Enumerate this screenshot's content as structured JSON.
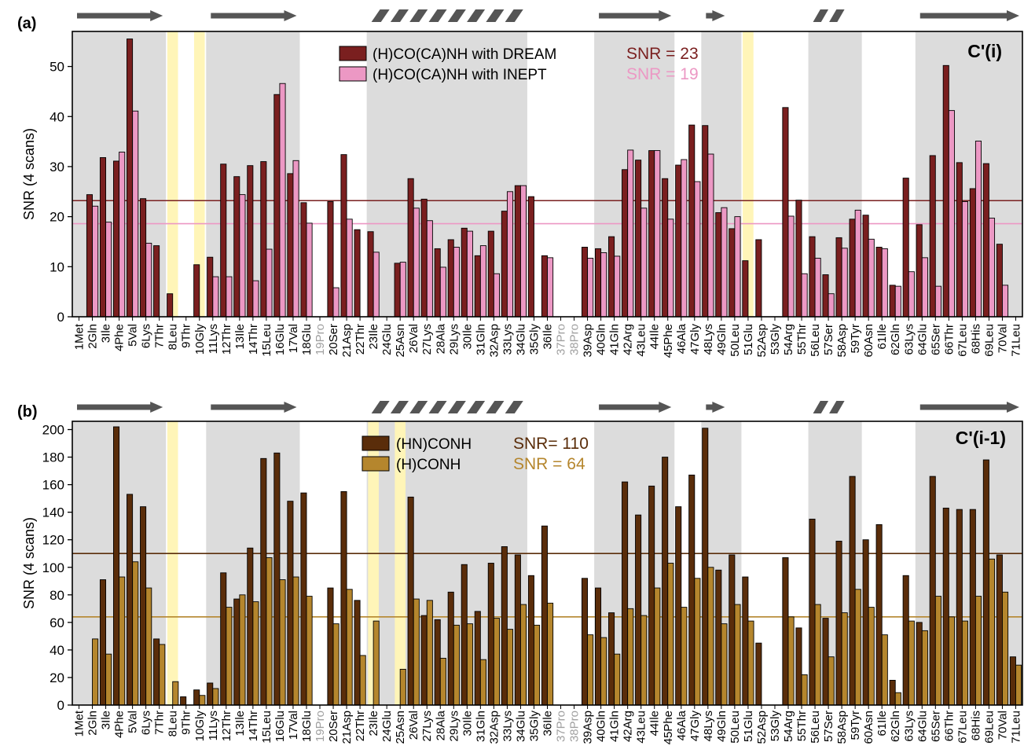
{
  "figure": {
    "categories": [
      "1Met",
      "2Gln",
      "3Ile",
      "4Phe",
      "5Val",
      "6Lys",
      "7Thr",
      "8Leu",
      "9Thr",
      "10Gly",
      "11Lys",
      "12Thr",
      "13Ile",
      "14Thr",
      "15Leu",
      "16Glu",
      "17Val",
      "18Glu",
      "19Pro",
      "20Ser",
      "21Asp",
      "22Thr",
      "23Ile",
      "24Glu",
      "25Asn",
      "26Val",
      "27Lys",
      "28Ala",
      "29Lys",
      "30Ile",
      "31Gln",
      "32Asp",
      "33Lys",
      "34Glu",
      "35Gly",
      "36Ile",
      "37Pro",
      "38Pro",
      "39Asp",
      "40Gln",
      "41Gln",
      "42Arg",
      "43Leu",
      "44Ile",
      "45Phe",
      "46Ala",
      "47Gly",
      "48Lys",
      "49Gln",
      "50Leu",
      "51Glu",
      "52Asp",
      "53Gly",
      "54Arg",
      "55Thr",
      "56Leu",
      "57Ser",
      "58Asp",
      "59Tyr",
      "60Asn",
      "61Ile",
      "62Gln",
      "63Lys",
      "64Glu",
      "65Ser",
      "66Thr",
      "67Leu",
      "68His",
      "69Leu",
      "70Val",
      "71Leu"
    ],
    "grey_categories": [
      "19Pro",
      "37Pro",
      "38Pro"
    ],
    "secondary_structure": [
      {
        "type": "strand",
        "from": 1,
        "to": 7
      },
      {
        "type": "strand",
        "from": 11,
        "to": 17
      },
      {
        "type": "helix",
        "from": 23,
        "to": 34
      },
      {
        "type": "strand",
        "from": 40,
        "to": 45
      },
      {
        "type": "strand",
        "from": 48,
        "to": 49
      },
      {
        "type": "helix",
        "from": 56,
        "to": 58
      },
      {
        "type": "strand",
        "from": 64,
        "to": 71
      }
    ],
    "grey_regions": [
      [
        1,
        7
      ],
      [
        11,
        17
      ],
      [
        23,
        34
      ],
      [
        40,
        45
      ],
      [
        48,
        50
      ],
      [
        56,
        59
      ],
      [
        64,
        71
      ]
    ],
    "colors": {
      "dark_red": "#7a1f1f",
      "pink": "#ec98c4",
      "dark_brown": "#5a2d0a",
      "gold": "#b5862d",
      "region_grey": "#dcdcdc",
      "highlight_yellow": "#fff5b8",
      "arrow_grey": "#555555",
      "grey_label": "#a0a0a0"
    }
  },
  "chart_data": [
    {
      "type": "bar",
      "panel": "(a)",
      "corner_label": "C'(i)",
      "ylabel": "SNR (4 scans)",
      "ylim": [
        0,
        57
      ],
      "yticks": [
        0,
        10,
        20,
        30,
        40,
        50
      ],
      "series": [
        {
          "name": "(H)CO(CA)NH with DREAM",
          "color": "#7a1f1f",
          "values": [
            0,
            24.4,
            31.8,
            31.1,
            55.5,
            23.6,
            14.2,
            4.6,
            0,
            10.4,
            11.9,
            30.5,
            28.0,
            30.2,
            31.0,
            44.4,
            28.6,
            22.8,
            0,
            23.0,
            32.4,
            17.4,
            17.0,
            0,
            10.7,
            27.6,
            23.5,
            13.6,
            15.4,
            17.7,
            12.2,
            17.1,
            21.1,
            26.2,
            24.0,
            12.2,
            0,
            0,
            13.9,
            13.6,
            16.0,
            29.4,
            31.3,
            33.2,
            27.6,
            30.3,
            38.3,
            38.2,
            20.8,
            17.6,
            11.2,
            15.4,
            0,
            41.8,
            23.3,
            16.0,
            8.4,
            15.8,
            19.5,
            20.3,
            13.9,
            6.3,
            27.7,
            18.4,
            32.2,
            50.2,
            30.8,
            25.6,
            30.6,
            14.5,
            0
          ]
        },
        {
          "name": "(H)CO(CA)NH with INEPT",
          "color": "#ec98c4",
          "values": [
            0,
            22.1,
            18.9,
            32.9,
            41.1,
            14.7,
            0,
            0,
            0,
            0,
            8.0,
            8.0,
            24.4,
            7.2,
            13.5,
            46.6,
            31.2,
            18.7,
            0,
            5.8,
            19.5,
            0,
            12.9,
            0,
            10.9,
            21.7,
            19.2,
            9.9,
            13.9,
            17.1,
            14.2,
            8.6,
            25.0,
            26.2,
            0,
            11.8,
            0,
            0,
            11.7,
            12.8,
            12.1,
            33.3,
            21.7,
            33.2,
            19.5,
            31.4,
            27.0,
            32.5,
            21.8,
            20.0,
            0,
            0,
            0,
            20.1,
            8.6,
            11.7,
            4.6,
            13.7,
            21.3,
            15.5,
            13.6,
            6.1,
            9.0,
            11.8,
            6.1,
            41.2,
            23.0,
            35.1,
            19.7,
            6.3,
            0
          ]
        }
      ],
      "reference_lines": [
        {
          "label": "SNR = 23",
          "value": 23.2,
          "color": "#7a1f1f"
        },
        {
          "label": "SNR = 19",
          "value": 18.6,
          "color": "#ec98c4"
        }
      ],
      "highlights": [
        8,
        10,
        51
      ]
    },
    {
      "type": "bar",
      "panel": "(b)",
      "corner_label": "C'(i-1)",
      "ylabel": "SNR (4 scans)",
      "ylim": [
        0,
        206
      ],
      "yticks": [
        0,
        20,
        40,
        60,
        80,
        100,
        120,
        140,
        160,
        180,
        200
      ],
      "series": [
        {
          "name": "(HN)CONH",
          "color": "#5a2d0a",
          "values": [
            0,
            0,
            91,
            202,
            153,
            144,
            48,
            0,
            6,
            11,
            16,
            96,
            77,
            114,
            179,
            183,
            148,
            154,
            0,
            85,
            155,
            76,
            0,
            0,
            0,
            151,
            65,
            62,
            82,
            102,
            68,
            103,
            115,
            109,
            94,
            130,
            0,
            0,
            92,
            85,
            67,
            162,
            138,
            159,
            180,
            144,
            167,
            201,
            98,
            109,
            93,
            45,
            0,
            107,
            56,
            135,
            63,
            119,
            166,
            120,
            131,
            18,
            94,
            60,
            166,
            143,
            142,
            142,
            178,
            109,
            35
          ]
        },
        {
          "name": "(H)CONH",
          "color": "#b5862d",
          "values": [
            0,
            48,
            37,
            93,
            104,
            85,
            44,
            17,
            0,
            7,
            12,
            71,
            80,
            75,
            107,
            91,
            93,
            79,
            0,
            59,
            84,
            36,
            61,
            0,
            26,
            77,
            76,
            34,
            58,
            59,
            33,
            63,
            55,
            73,
            58,
            74,
            0,
            0,
            51,
            49,
            37,
            70,
            65,
            85,
            103,
            71,
            92,
            100,
            59,
            73,
            61,
            0,
            0,
            64,
            22,
            73,
            35,
            67,
            84,
            71,
            51,
            9,
            61,
            54,
            79,
            64,
            61,
            79,
            106,
            82,
            29
          ]
        }
      ],
      "reference_lines": [
        {
          "label": "SNR= 110",
          "value": 110,
          "color": "#5a2d0a"
        },
        {
          "label": "SNR = 64",
          "value": 64,
          "color": "#b5862d"
        }
      ],
      "highlights": [
        8,
        23,
        25
      ]
    }
  ]
}
